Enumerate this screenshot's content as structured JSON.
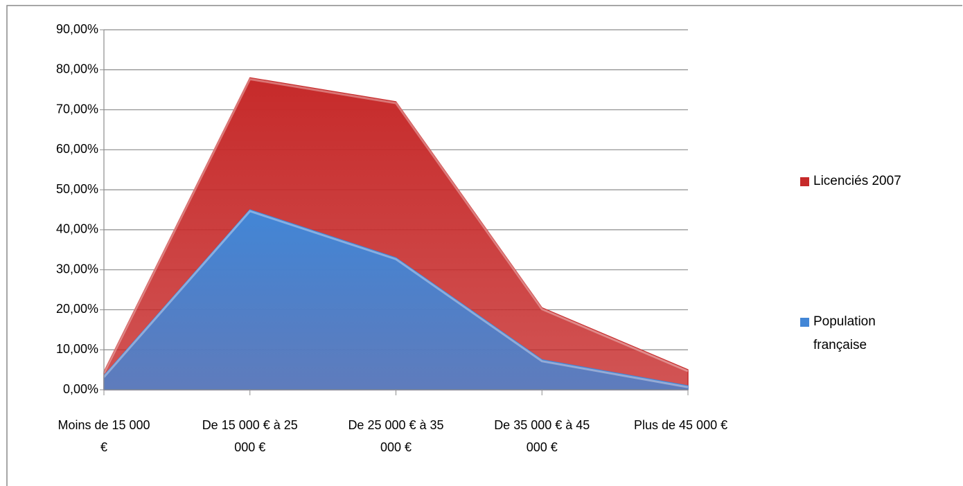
{
  "chart_data": {
    "type": "area",
    "categories": [
      "Moins de 15 000 €",
      "De 15 000 € à 25 000 €",
      "De 25 000 € à 35 000 €",
      "De 35 000 € à 45 000 €",
      "Plus de 45 000 €"
    ],
    "series": [
      {
        "name": "Licenciés 2007",
        "color": "#c62a2a",
        "values": [
          4.5,
          78,
          72,
          20.5,
          5
        ]
      },
      {
        "name": "Population française",
        "color": "#4286d6",
        "values": [
          3.5,
          45,
          33,
          7.5,
          1
        ]
      }
    ],
    "ylim": [
      0,
      90
    ],
    "yticks": [
      {
        "value": 0,
        "label": "0,00%"
      },
      {
        "value": 10,
        "label": "10,00%"
      },
      {
        "value": 20,
        "label": "20,00%"
      },
      {
        "value": 30,
        "label": "30,00%"
      },
      {
        "value": 40,
        "label": "40,00%"
      },
      {
        "value": 50,
        "label": "50,00%"
      },
      {
        "value": 60,
        "label": "60,00%"
      },
      {
        "value": 70,
        "label": "70,00%"
      },
      {
        "value": 80,
        "label": "80,00%"
      },
      {
        "value": 90,
        "label": "90,00%"
      }
    ],
    "grid": true,
    "legend": "right"
  }
}
